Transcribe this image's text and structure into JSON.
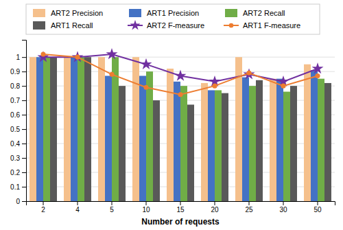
{
  "chart_data": {
    "type": "bar",
    "categories": [
      "2",
      "4",
      "5",
      "10",
      "15",
      "20",
      "25",
      "30",
      "50"
    ],
    "series": [
      {
        "name": "ART2 Precision",
        "type": "bar",
        "color": "#F5C08C",
        "values": [
          1.0,
          1.0,
          1.0,
          1.0,
          0.92,
          0.82,
          1.0,
          0.85,
          0.95
        ]
      },
      {
        "name": "ART1 Precision",
        "type": "bar",
        "color": "#4472C4",
        "values": [
          1.0,
          1.0,
          0.87,
          0.87,
          0.83,
          0.77,
          0.86,
          0.85,
          0.91
        ]
      },
      {
        "name": "ART2 Recall",
        "type": "bar",
        "color": "#70AD47",
        "values": [
          1.0,
          1.0,
          1.0,
          0.9,
          0.8,
          0.77,
          0.8,
          0.76,
          0.85
        ]
      },
      {
        "name": "ART1 Recall",
        "type": "bar",
        "color": "#595959",
        "values": [
          1.0,
          1.0,
          0.8,
          0.7,
          0.67,
          0.75,
          0.84,
          0.8,
          0.82
        ]
      },
      {
        "name": "ART2 F-measure",
        "type": "line",
        "marker": "star",
        "color": "#7030A0",
        "values": [
          1.0,
          1.0,
          1.02,
          0.95,
          0.87,
          0.83,
          0.88,
          0.83,
          0.92
        ]
      },
      {
        "name": "ART1 F-measure",
        "type": "line",
        "marker": "circle",
        "color": "#ED7D31",
        "values": [
          1.02,
          1.0,
          0.88,
          0.79,
          0.74,
          0.8,
          0.89,
          0.8,
          0.87
        ]
      }
    ],
    "xlabel": "Number of requests",
    "ylim": [
      0,
      1.12
    ],
    "yticks": [
      0,
      0.1,
      0.2,
      0.3,
      0.4,
      0.5,
      0.6,
      0.7,
      0.8,
      0.9,
      1
    ],
    "grid": true,
    "legend": "top"
  }
}
